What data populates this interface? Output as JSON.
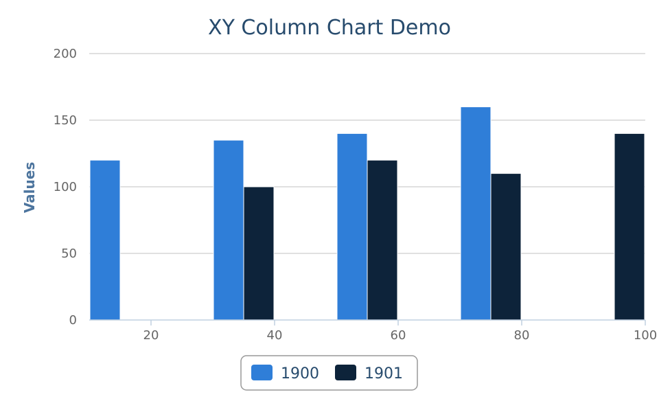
{
  "chart_data": {
    "type": "bar",
    "title": "XY Column Chart Demo",
    "xlabel": "",
    "ylabel": "Values",
    "xlim": [
      10,
      100
    ],
    "ylim": [
      0,
      200
    ],
    "x_ticks": [
      20,
      40,
      60,
      80,
      100
    ],
    "y_ticks": [
      0,
      50,
      100,
      150,
      200
    ],
    "grid": true,
    "legend_position": "bottom-center",
    "series": [
      {
        "name": "1900",
        "color": "#2f7ed8",
        "points": [
          {
            "x": 15,
            "y": 120
          },
          {
            "x": 35,
            "y": 135
          },
          {
            "x": 55,
            "y": 140
          },
          {
            "x": 75,
            "y": 160
          }
        ]
      },
      {
        "name": "1901",
        "color": "#0d233a",
        "points": [
          {
            "x": 35,
            "y": 100
          },
          {
            "x": 55,
            "y": 120
          },
          {
            "x": 75,
            "y": 110
          },
          {
            "x": 95,
            "y": 140
          }
        ]
      }
    ]
  }
}
